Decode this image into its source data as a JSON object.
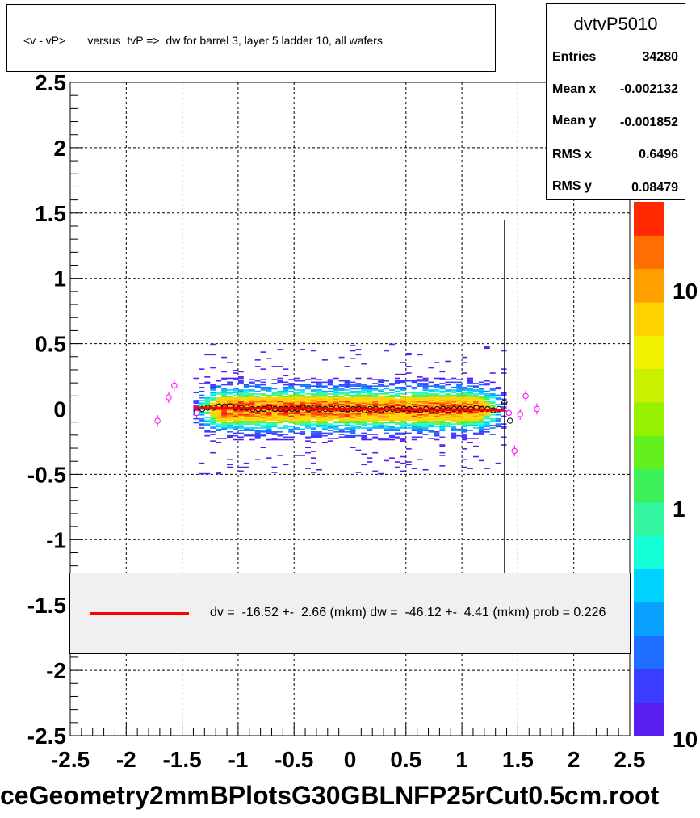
{
  "title": "<v - vP>       versus  tvP =>  dw for barrel 3, layer 5 ladder 10, all wafers",
  "stats": {
    "name": "dvtvP5010",
    "rows": [
      {
        "label": "Entries",
        "value": "34280"
      },
      {
        "label": "Mean x",
        "value": "-0.002132"
      },
      {
        "label": "Mean y",
        "value": "-0.001852"
      },
      {
        "label": "RMS x",
        "value": "0.6496"
      },
      {
        "label": "RMS y",
        "value": "0.08479"
      }
    ]
  },
  "legend": {
    "text": "dv =  -16.52 +-  2.66 (mkm) dw =  -46.12 +-  4.41 (mkm) prob = 0.226",
    "line_color": "#ff0000"
  },
  "footer": "ceGeometry2mmBPlotsG30GBLNFP25rCut0.5cm.root",
  "colorbar": {
    "tick_labels": [
      "10",
      "1",
      "10"
    ]
  },
  "chart_data": {
    "type": "heatmap",
    "xlim": [
      -2.5,
      2.5
    ],
    "ylim": [
      -2.5,
      2.5
    ],
    "x_ticks": [
      -2.5,
      -2,
      -1.5,
      -1,
      -0.5,
      0,
      0.5,
      1,
      1.5,
      2,
      2.5
    ],
    "x_tick_labels": [
      "-2.5",
      "-2",
      "-1.5",
      "-1",
      "-0.5",
      "0",
      "0.5",
      "1",
      "1.5",
      "2",
      "2.5"
    ],
    "y_ticks": [
      -2.5,
      -2,
      -1.5,
      -1,
      -0.5,
      0,
      0.5,
      1,
      1.5,
      2,
      2.5
    ],
    "y_tick_labels": [
      "-2.5",
      "-2",
      "-1.5",
      "-1",
      "-0.5",
      "0",
      "0.5",
      "1",
      "1.5",
      "2",
      "2.5"
    ],
    "grid": true,
    "scale": "log",
    "density_region": {
      "x": [
        -1.4,
        1.4
      ],
      "y_core": [
        -0.1,
        0.1
      ],
      "y_extent": [
        -0.5,
        0.5
      ]
    },
    "profile_points_black": {
      "x": [
        -1.37,
        -1.32,
        -1.27,
        -1.22,
        -1.17,
        -1.12,
        -1.07,
        -1.02,
        -0.97,
        -0.92,
        -0.87,
        -0.82,
        -0.77,
        -0.72,
        -0.67,
        -0.62,
        -0.57,
        -0.52,
        -0.47,
        -0.42,
        -0.37,
        -0.32,
        -0.27,
        -0.22,
        -0.17,
        -0.12,
        -0.07,
        -0.02,
        0.03,
        0.08,
        0.13,
        0.18,
        0.23,
        0.28,
        0.33,
        0.38,
        0.43,
        0.48,
        0.53,
        0.58,
        0.63,
        0.68,
        0.73,
        0.78,
        0.83,
        0.88,
        0.93,
        0.98,
        1.03,
        1.08,
        1.13,
        1.18,
        1.23,
        1.28,
        1.33,
        1.38,
        1.43
      ],
      "y": [
        -0.02,
        0.0,
        0.01,
        0.01,
        0.02,
        0.02,
        0.02,
        0.01,
        0.01,
        0.01,
        0.0,
        0.0,
        0.0,
        0.01,
        0.0,
        0.0,
        0.0,
        0.0,
        0.0,
        0.01,
        0.0,
        0.01,
        0.0,
        0.0,
        0.0,
        0.01,
        0.0,
        0.0,
        0.0,
        0.0,
        -0.01,
        0.0,
        0.0,
        -0.01,
        0.0,
        0.0,
        -0.01,
        0.0,
        0.0,
        0.0,
        -0.01,
        0.0,
        -0.01,
        0.0,
        0.0,
        -0.01,
        0.0,
        0.0,
        0.0,
        0.0,
        0.01,
        0.0,
        0.0,
        -0.01,
        0.0,
        0.05,
        -0.09
      ]
    },
    "profile_points_magenta": {
      "x": [
        -1.72,
        -1.62,
        -1.57,
        -1.37,
        1.42,
        1.47,
        1.52,
        1.57,
        1.67
      ],
      "y": [
        -0.09,
        0.09,
        0.18,
        -0.03,
        -0.03,
        -0.32,
        -0.04,
        0.1,
        0.0
      ]
    },
    "fit_line": {
      "x": [
        -1.4,
        1.38
      ],
      "y": [
        0.01,
        -0.01
      ],
      "color": "#ff0000"
    },
    "vertical_line": {
      "x": 1.38,
      "y": [
        -2.5,
        1.45
      ]
    }
  }
}
